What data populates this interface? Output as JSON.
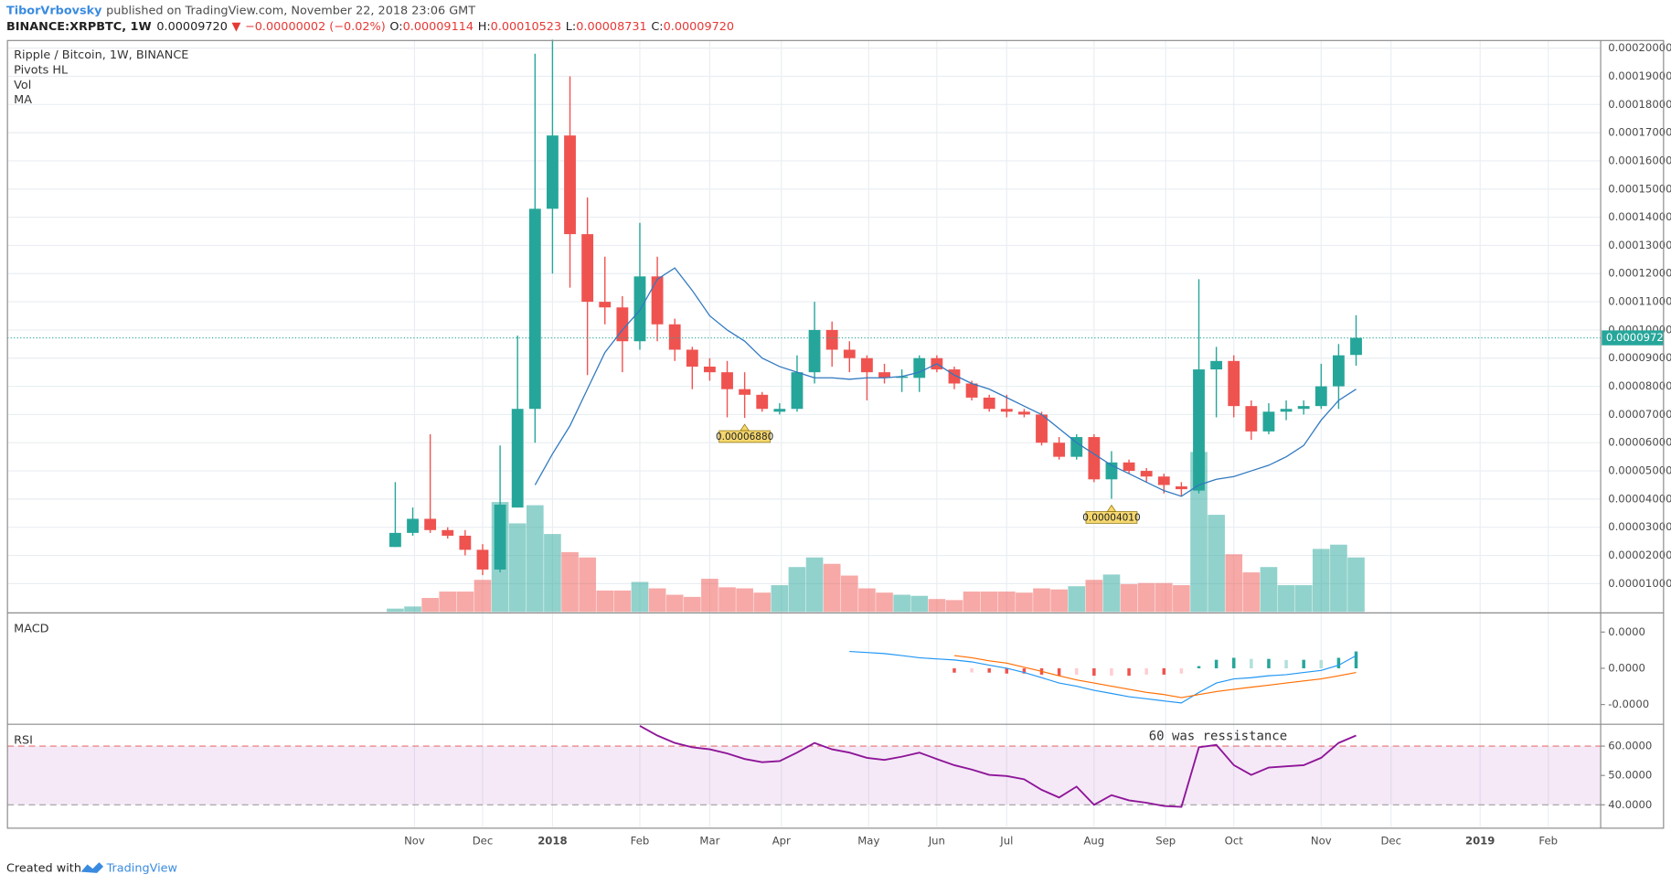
{
  "header": {
    "author": "TiborVrbovsky",
    "published": "published on TradingView.com, November 22, 2018 23:06 GMT",
    "symbol": "BINANCE:XRPBTC, 1W",
    "last": "0.00009720",
    "arrow": "▼",
    "change": "−0.00000002 (−0.02%)",
    "ohlc": [
      {
        "key": "O:",
        "value": "0.00009114"
      },
      {
        "key": "H:",
        "value": "0.00010523"
      },
      {
        "key": "L:",
        "value": "0.00008731"
      },
      {
        "key": "C:",
        "value": "0.00009720"
      }
    ]
  },
  "footer": {
    "created_with": "Created with",
    "brand": "TradingView"
  },
  "chart_data": [
    {
      "type": "candlestick",
      "title": "Ripple / Bitcoin, 1W, BINANCE",
      "indicators": [
        "Pivots HL",
        "Vol",
        "MA"
      ],
      "up_color": "#26a69a",
      "down_color": "#ef5350",
      "ma_color": "#3179c0",
      "open": [
        2.3e-05,
        2.8e-05,
        3.3e-05,
        2.9e-05,
        2.7e-05,
        2.2e-05,
        1.5e-05,
        3.7e-05,
        7.2e-05,
        0.000143,
        0.000169,
        0.000134,
        0.00011,
        0.000108,
        9.6e-05,
        0.000119,
        0.000102,
        9.3e-05,
        8.7e-05,
        8.5e-05,
        7.9e-05,
        7.7e-05,
        7.1e-05,
        7.2e-05,
        8.5e-05,
        0.0001,
        9.3e-05,
        9e-05,
        8.5e-05,
        8.3e-05,
        8.3e-05,
        9e-05,
        8.6e-05,
        8.1e-05,
        7.6e-05,
        7.2e-05,
        7.1e-05,
        7e-05,
        6e-05,
        5.5e-05,
        6.2e-05,
        4.7e-05,
        5.3e-05,
        5e-05,
        4.8e-05,
        4.45e-05,
        4.3e-05,
        8.6e-05,
        8.9e-05,
        7.3e-05,
        6.4e-05,
        7.1e-05,
        7.2e-05,
        7.3e-05,
        8e-05,
        9.114e-05
      ],
      "high": [
        4.6e-05,
        3.7e-05,
        6.3e-05,
        3e-05,
        2.9e-05,
        2.4e-05,
        5.9e-05,
        9.8e-05,
        0.000198,
        0.000203,
        0.00019,
        0.000147,
        0.000126,
        0.000112,
        0.000138,
        0.000126,
        0.000104,
        9.4e-05,
        9e-05,
        8.9e-05,
        8.5e-05,
        7.8e-05,
        7.4e-05,
        9.1e-05,
        0.00011,
        0.000103,
        9.6e-05,
        9.1e-05,
        8.8e-05,
        8.6e-05,
        9.1e-05,
        9.1e-05,
        8.7e-05,
        8.2e-05,
        7.7e-05,
        7.7e-05,
        7.2e-05,
        7.1e-05,
        6.2e-05,
        6.3e-05,
        6.3e-05,
        5.7e-05,
        5.4e-05,
        5.1e-05,
        4.9e-05,
        4.6e-05,
        0.000118,
        9.4e-05,
        9.1e-05,
        7.5e-05,
        7.4e-05,
        7.5e-05,
        7.5e-05,
        8.8e-05,
        9.5e-05,
        0.00010523
      ],
      "low": [
        2.3e-05,
        2.7e-05,
        2.8e-05,
        2.6e-05,
        2e-05,
        1.3e-05,
        1.4e-05,
        3.7e-05,
        6e-05,
        0.00012,
        0.000115,
        8.4e-05,
        0.000102,
        8.5e-05,
        9.3e-05,
        9.6e-05,
        8.9e-05,
        7.9e-05,
        8.2e-05,
        6.9e-05,
        6.88e-05,
        7.1e-05,
        7e-05,
        7.1e-05,
        8.1e-05,
        8.7e-05,
        8.5e-05,
        7.5e-05,
        8.1e-05,
        7.8e-05,
        7.8e-05,
        8.5e-05,
        7.9e-05,
        7.5e-05,
        7.1e-05,
        6.9e-05,
        6.9e-05,
        5.9e-05,
        5.4e-05,
        5.4e-05,
        4.6e-05,
        4.01e-05,
        4.9e-05,
        4.6e-05,
        4.2e-05,
        4.1e-05,
        4.2e-05,
        6.9e-05,
        6.9e-05,
        6.1e-05,
        6.3e-05,
        6.8e-05,
        7e-05,
        7.2e-05,
        7.2e-05,
        8.731e-05
      ],
      "close": [
        2.8e-05,
        3.3e-05,
        2.9e-05,
        2.7e-05,
        2.2e-05,
        1.5e-05,
        3.8e-05,
        7.2e-05,
        0.000143,
        0.000169,
        0.000134,
        0.00011,
        0.000108,
        9.6e-05,
        0.000119,
        0.000102,
        9.3e-05,
        8.7e-05,
        8.5e-05,
        7.9e-05,
        7.7e-05,
        7.2e-05,
        7.2e-05,
        8.5e-05,
        0.0001,
        9.3e-05,
        9e-05,
        8.5e-05,
        8.3e-05,
        8.35e-05,
        9e-05,
        8.6e-05,
        8.1e-05,
        7.6e-05,
        7.2e-05,
        7.1e-05,
        7e-05,
        6e-05,
        5.5e-05,
        6.2e-05,
        4.7e-05,
        5.3e-05,
        5e-05,
        4.8e-05,
        4.5e-05,
        4.35e-05,
        8.6e-05,
        8.9e-05,
        7.3e-05,
        6.4e-05,
        7.1e-05,
        7.2e-05,
        7.3e-05,
        8e-05,
        9.1e-05,
        9.72e-05
      ],
      "volume": [
        3,
        5,
        13,
        19,
        19,
        30,
        103,
        83,
        100,
        73,
        56,
        51,
        20,
        20,
        28,
        22,
        16,
        14,
        31,
        23,
        22,
        18,
        25,
        42,
        51,
        45,
        34,
        22,
        18,
        16,
        15,
        12,
        11,
        19,
        19,
        19,
        18,
        22,
        21,
        24,
        30,
        35,
        26,
        27,
        27,
        25,
        150,
        91,
        54,
        37,
        42,
        25,
        25,
        59,
        63,
        51
      ],
      "ma": {
        "name": "MA",
        "values": [
          null,
          null,
          null,
          null,
          null,
          null,
          null,
          null,
          4.5e-05,
          5.6e-05,
          6.6e-05,
          7.9e-05,
          9.2e-05,
          0.0001,
          0.000107,
          0.000118,
          0.000122,
          0.000114,
          0.000105,
          0.0001,
          9.6e-05,
          9e-05,
          8.7e-05,
          8.5e-05,
          8.3e-05,
          8.3e-05,
          8.25e-05,
          8.3e-05,
          8.3e-05,
          8.35e-05,
          8.5e-05,
          8.8e-05,
          8.4e-05,
          8.1e-05,
          7.9e-05,
          7.6e-05,
          7.3e-05,
          7e-05,
          6.5e-05,
          6e-05,
          5.6e-05,
          5.2e-05,
          4.9e-05,
          4.6e-05,
          4.3e-05,
          4.1e-05,
          4.5e-05,
          4.7e-05,
          4.8e-05,
          5e-05,
          5.2e-05,
          5.5e-05,
          5.9e-05,
          6.8e-05,
          7.5e-05,
          7.9e-05
        ]
      },
      "pivots": [
        {
          "x": 20,
          "value": 6.88e-05,
          "label": "0.00006880"
        },
        {
          "x": 41,
          "value": 4.01e-05,
          "label": "0.00004010"
        }
      ],
      "last_price": {
        "value": 9.72e-05,
        "label": "0.00009720"
      },
      "ylim": [
        0,
        0.0002027
      ],
      "yticks": [
        {
          "value": 1e-05,
          "label": "0.00001000"
        },
        {
          "value": 2e-05,
          "label": "0.00002000"
        },
        {
          "value": 3e-05,
          "label": "0.00003000"
        },
        {
          "value": 4e-05,
          "label": "0.00004000"
        },
        {
          "value": 5e-05,
          "label": "0.00005000"
        },
        {
          "value": 6e-05,
          "label": "0.00006000"
        },
        {
          "value": 7e-05,
          "label": "0.00007000"
        },
        {
          "value": 8e-05,
          "label": "0.00008000"
        },
        {
          "value": 9e-05,
          "label": "0.00009000"
        },
        {
          "value": 0.0001,
          "label": "0.00010000"
        },
        {
          "value": 0.00011,
          "label": "0.00011000"
        },
        {
          "value": 0.00012,
          "label": "0.00012000"
        },
        {
          "value": 0.00013,
          "label": "0.00013000"
        },
        {
          "value": 0.00014,
          "label": "0.00014000"
        },
        {
          "value": 0.00015,
          "label": "0.00015000"
        },
        {
          "value": 0.00016,
          "label": "0.00016000"
        },
        {
          "value": 0.00017,
          "label": "0.00017000"
        },
        {
          "value": 0.00018,
          "label": "0.00018000"
        },
        {
          "value": 0.00019,
          "label": "0.00019000"
        },
        {
          "value": 0.0002,
          "label": "0.00020000"
        }
      ],
      "xlim": [
        -22.2,
        69
      ],
      "xticks": [
        {
          "value": 1.1,
          "label": "Nov"
        },
        {
          "value": 5,
          "label": "Dec"
        },
        {
          "value": 9,
          "label": "2018"
        },
        {
          "value": 14,
          "label": "Feb"
        },
        {
          "value": 18,
          "label": "Mar"
        },
        {
          "value": 22.1,
          "label": "Apr"
        },
        {
          "value": 27.1,
          "label": "May"
        },
        {
          "value": 31,
          "label": "Jun"
        },
        {
          "value": 35,
          "label": "Jul"
        },
        {
          "value": 40,
          "label": "Aug"
        },
        {
          "value": 44.1,
          "label": "Sep"
        },
        {
          "value": 48,
          "label": "Oct"
        },
        {
          "value": 53,
          "label": "Nov"
        },
        {
          "value": 57,
          "label": "Dec"
        },
        {
          "value": 62.1,
          "label": "2019"
        },
        {
          "value": 66,
          "label": "Feb"
        }
      ],
      "grid": true
    },
    {
      "type": "macd",
      "title": "MACD",
      "macd_color": "#2196f3",
      "signal_color": "#ff6d00",
      "macd": [
        null,
        null,
        null,
        null,
        null,
        null,
        null,
        null,
        null,
        null,
        null,
        null,
        null,
        null,
        null,
        null,
        null,
        null,
        null,
        null,
        null,
        null,
        null,
        null,
        null,
        null,
        9.3e-06,
        8.7e-06,
        8.1e-06,
        7e-06,
        5.8e-06,
        5.2e-06,
        4.6e-06,
        3.5e-06,
        1.7e-06,
        0,
        -2.3e-06,
        -5.2e-06,
        -8.1e-06,
        -9.9e-06,
        -1.22e-05,
        -1.39e-05,
        -1.57e-05,
        -1.68e-05,
        -1.8e-05,
        -1.91e-05,
        -1.33e-05,
        -8.1e-06,
        -5.8e-06,
        -5.2e-06,
        -4.1e-06,
        -3.5e-06,
        -2.3e-06,
        -1.2e-06,
        1.7e-06,
        7e-06
      ],
      "signal": [
        null,
        null,
        null,
        null,
        null,
        null,
        null,
        null,
        null,
        null,
        null,
        null,
        null,
        null,
        null,
        null,
        null,
        null,
        null,
        null,
        null,
        null,
        null,
        null,
        null,
        null,
        null,
        null,
        null,
        null,
        null,
        null,
        7e-06,
        5.8e-06,
        4.1e-06,
        2.9e-06,
        6e-07,
        -1.7e-06,
        -4.1e-06,
        -6.4e-06,
        -8.1e-06,
        -9.9e-06,
        -1.16e-05,
        -1.33e-05,
        -1.45e-05,
        -1.62e-05,
        -1.45e-05,
        -1.28e-05,
        -1.16e-05,
        -1.04e-05,
        -9.3e-06,
        -8.1e-06,
        -7e-06,
        -5.8e-06,
        -4.1e-06,
        -2.3e-06
      ],
      "histogram": [
        null,
        null,
        null,
        null,
        null,
        null,
        null,
        null,
        null,
        null,
        null,
        null,
        null,
        null,
        null,
        null,
        null,
        null,
        null,
        null,
        null,
        null,
        null,
        null,
        null,
        null,
        null,
        null,
        null,
        null,
        null,
        null,
        -2.4e-06,
        -2.3e-06,
        -2.4e-06,
        -2.9e-06,
        -2.9e-06,
        -3.5e-06,
        -4e-06,
        -3.5e-06,
        -4.1e-06,
        -4e-06,
        -4.1e-06,
        -3.5e-06,
        -3.5e-06,
        -2.9e-06,
        1.2e-06,
        4.7e-06,
        5.8e-06,
        5.2e-06,
        5.2e-06,
        4.6e-06,
        4.7e-06,
        4.6e-06,
        5.8e-06,
        9.3e-06
      ],
      "ylim": [
        -3e-05,
        3e-05
      ],
      "yticks": [
        {
          "value": 2e-05,
          "label": "0.0000"
        },
        {
          "value": 0,
          "label": "0.0000"
        },
        {
          "value": -2e-05,
          "label": "-0.0000"
        }
      ]
    },
    {
      "type": "rsi",
      "title": "RSI",
      "color": "#8e1599",
      "levels": [
        40,
        60
      ],
      "annotation": "60 was ressistance",
      "values": [
        null,
        null,
        null,
        null,
        null,
        null,
        null,
        null,
        null,
        null,
        null,
        null,
        null,
        null,
        66.9,
        63.6,
        61.1,
        59.6,
        58.9,
        57.5,
        55.6,
        54.5,
        54.9,
        57.8,
        61.1,
        58.9,
        57.8,
        56,
        55.3,
        56.4,
        57.8,
        55.6,
        53.5,
        52,
        50.2,
        49.8,
        48.7,
        45.1,
        42.5,
        46.2,
        40,
        43.3,
        41.5,
        40.7,
        39.6,
        39.3,
        59.6,
        60.4,
        53.5,
        50.2,
        52.7,
        53.1,
        53.5,
        56,
        61.1,
        63.6
      ],
      "ylim": [
        32.4,
        66.9
      ],
      "yticks": [
        {
          "value": 60,
          "label": "60.0000"
        },
        {
          "value": 50,
          "label": "50.0000"
        },
        {
          "value": 40,
          "label": "40.0000"
        }
      ]
    }
  ]
}
